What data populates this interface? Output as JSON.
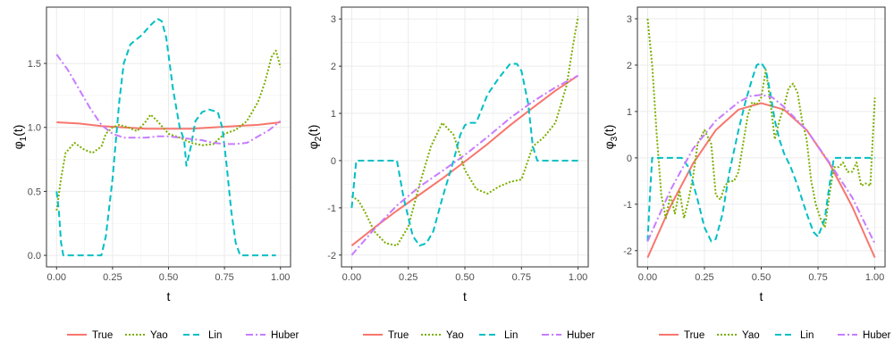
{
  "colors": {
    "True": "#F8766D",
    "Yao": "#7CAE00",
    "Lin": "#00BFC4",
    "Huber": "#C77CFF"
  },
  "chart_data": [
    {
      "type": "line",
      "xlabel": "t",
      "ylabel": "φ1(t)",
      "ylabel_main": "φ",
      "ylabel_sub": "1",
      "ylabel_tail": "(t)",
      "xlim": [
        -0.045,
        1.045
      ],
      "ylim": [
        -0.09,
        1.94
      ],
      "xticks": [
        0,
        0.25,
        0.5,
        0.75,
        1
      ],
      "xtick_labels": [
        "0.00",
        "0.25",
        "0.50",
        "0.75",
        "1.00"
      ],
      "yticks": [
        0,
        0.5,
        1,
        1.5
      ],
      "ytick_labels": [
        "0.0",
        "0.5",
        "1.0",
        "1.5"
      ],
      "grid": true,
      "legend_position": "bottom",
      "legend": [
        "True",
        "Yao",
        "Lin",
        "Huber"
      ],
      "series": [
        {
          "name": "True",
          "dash": "solid",
          "x": [
            0,
            0.1,
            0.2,
            0.3,
            0.4,
            0.5,
            0.6,
            0.7,
            0.8,
            0.9,
            1.0
          ],
          "y": [
            1.04,
            1.03,
            1.01,
            1.0,
            0.99,
            0.99,
            0.99,
            1.0,
            1.01,
            1.02,
            1.04
          ]
        },
        {
          "name": "Yao",
          "dash": "dotted",
          "x": [
            0,
            0.02,
            0.04,
            0.08,
            0.12,
            0.16,
            0.2,
            0.22,
            0.25,
            0.28,
            0.32,
            0.36,
            0.4,
            0.42,
            0.45,
            0.5,
            0.55,
            0.6,
            0.65,
            0.7,
            0.75,
            0.8,
            0.85,
            0.9,
            0.93,
            0.96,
            0.98,
            1.0
          ],
          "y": [
            0.35,
            0.6,
            0.8,
            0.88,
            0.83,
            0.8,
            0.85,
            0.95,
            1.0,
            1.02,
            1.0,
            0.97,
            1.05,
            1.1,
            1.05,
            0.95,
            0.92,
            0.88,
            0.86,
            0.87,
            0.95,
            0.98,
            1.05,
            1.2,
            1.35,
            1.55,
            1.6,
            1.47
          ]
        },
        {
          "name": "Lin",
          "dash": "dashed",
          "x": [
            0,
            0.01,
            0.02,
            0.03,
            0.05,
            0.1,
            0.2,
            0.22,
            0.25,
            0.28,
            0.3,
            0.33,
            0.38,
            0.42,
            0.45,
            0.47,
            0.49,
            0.52,
            0.55,
            0.57,
            0.58,
            0.6,
            0.62,
            0.65,
            0.68,
            0.72,
            0.74,
            0.76,
            0.78,
            0.8,
            0.82,
            0.85,
            0.9,
            0.95,
            0.98
          ],
          "y": [
            0.5,
            0.35,
            0.1,
            0.0,
            0.0,
            0.0,
            0.0,
            0.15,
            0.6,
            1.2,
            1.5,
            1.65,
            1.72,
            1.8,
            1.85,
            1.83,
            1.7,
            1.3,
            1.0,
            0.9,
            0.7,
            0.85,
            1.05,
            1.12,
            1.14,
            1.12,
            1.0,
            0.7,
            0.35,
            0.1,
            0.0,
            0.0,
            0.0,
            0.0,
            0.0
          ]
        },
        {
          "name": "Huber",
          "dash": "dashdot",
          "x": [
            0,
            0.05,
            0.1,
            0.15,
            0.2,
            0.25,
            0.3,
            0.35,
            0.4,
            0.45,
            0.5,
            0.55,
            0.6,
            0.65,
            0.7,
            0.75,
            0.8,
            0.85,
            0.9,
            0.95,
            1.0
          ],
          "y": [
            1.57,
            1.45,
            1.3,
            1.15,
            1.02,
            0.95,
            0.92,
            0.92,
            0.92,
            0.93,
            0.93,
            0.92,
            0.91,
            0.9,
            0.88,
            0.87,
            0.87,
            0.88,
            0.93,
            0.98,
            1.05
          ]
        }
      ]
    },
    {
      "type": "line",
      "xlabel": "t",
      "ylabel": "φ2(t)",
      "ylabel_main": "φ",
      "ylabel_sub": "2",
      "ylabel_tail": "(t)",
      "xlim": [
        -0.045,
        1.045
      ],
      "ylim": [
        -2.25,
        3.25
      ],
      "xticks": [
        0,
        0.25,
        0.5,
        0.75,
        1
      ],
      "xtick_labels": [
        "0.00",
        "0.25",
        "0.50",
        "0.75",
        "1.00"
      ],
      "yticks": [
        -2,
        -1,
        0,
        1,
        2,
        3
      ],
      "ytick_labels": [
        "-2",
        "-1",
        "0",
        "1",
        "2",
        "3"
      ],
      "grid": true,
      "legend_position": "bottom",
      "legend": [
        "True",
        "Yao",
        "Lin",
        "Huber"
      ],
      "series": [
        {
          "name": "True",
          "dash": "solid",
          "x": [
            0,
            0.1,
            0.2,
            0.3,
            0.4,
            0.5,
            0.6,
            0.7,
            0.8,
            0.9,
            1.0
          ],
          "y": [
            -1.8,
            -1.42,
            -1.06,
            -0.72,
            -0.38,
            -0.02,
            0.35,
            0.75,
            1.12,
            1.48,
            1.8
          ]
        },
        {
          "name": "Yao",
          "dash": "dotted",
          "x": [
            0,
            0.03,
            0.06,
            0.1,
            0.15,
            0.2,
            0.25,
            0.3,
            0.35,
            0.4,
            0.45,
            0.5,
            0.55,
            0.6,
            0.65,
            0.7,
            0.75,
            0.8,
            0.85,
            0.9,
            0.95,
            0.98,
            1.0
          ],
          "y": [
            -0.75,
            -0.85,
            -1.1,
            -1.5,
            -1.75,
            -1.8,
            -1.4,
            -0.5,
            0.3,
            0.8,
            0.55,
            -0.2,
            -0.6,
            -0.7,
            -0.55,
            -0.45,
            -0.4,
            0.3,
            0.5,
            0.8,
            1.6,
            2.5,
            3.05
          ]
        },
        {
          "name": "Lin",
          "dash": "dashed",
          "x": [
            0,
            0.01,
            0.02,
            0.05,
            0.1,
            0.2,
            0.23,
            0.27,
            0.3,
            0.33,
            0.36,
            0.4,
            0.45,
            0.48,
            0.5,
            0.52,
            0.55,
            0.6,
            0.65,
            0.7,
            0.73,
            0.75,
            0.78,
            0.8,
            0.82,
            0.85,
            0.9,
            0.95,
            1.0
          ],
          "y": [
            -1.0,
            -0.5,
            0.0,
            0.0,
            0.0,
            0.0,
            -0.8,
            -1.6,
            -1.8,
            -1.75,
            -1.5,
            -0.8,
            0.0,
            0.55,
            0.75,
            0.8,
            0.8,
            1.4,
            1.75,
            2.05,
            2.05,
            1.9,
            1.2,
            0.3,
            0.0,
            0.0,
            0.0,
            0.0,
            0.0
          ]
        },
        {
          "name": "Huber",
          "dash": "dashdot",
          "x": [
            0,
            0.1,
            0.2,
            0.3,
            0.4,
            0.5,
            0.6,
            0.7,
            0.8,
            0.9,
            1.0
          ],
          "y": [
            -2.0,
            -1.45,
            -0.95,
            -0.55,
            -0.22,
            0.12,
            0.5,
            0.9,
            1.25,
            1.55,
            1.8
          ]
        }
      ]
    },
    {
      "type": "line",
      "xlabel": "t",
      "ylabel": "φ3(t)",
      "ylabel_main": "φ",
      "ylabel_sub": "3",
      "ylabel_tail": "(t)",
      "xlim": [
        -0.045,
        1.045
      ],
      "ylim": [
        -2.35,
        3.25
      ],
      "xticks": [
        0,
        0.25,
        0.5,
        0.75,
        1
      ],
      "xtick_labels": [
        "0.00",
        "0.25",
        "0.50",
        "0.75",
        "1.00"
      ],
      "yticks": [
        -2,
        -1,
        0,
        1,
        2,
        3
      ],
      "ytick_labels": [
        "-2",
        "-1",
        "0",
        "1",
        "2",
        "3"
      ],
      "grid": true,
      "legend_position": "bottom",
      "legend": [
        "True",
        "Yao",
        "Lin",
        "Huber"
      ],
      "series": [
        {
          "name": "True",
          "dash": "solid",
          "x": [
            0,
            0.1,
            0.2,
            0.3,
            0.4,
            0.5,
            0.6,
            0.7,
            0.8,
            0.9,
            1.0
          ],
          "y": [
            -2.15,
            -1.05,
            -0.12,
            0.6,
            1.04,
            1.18,
            1.04,
            0.6,
            -0.12,
            -1.05,
            -2.15
          ]
        },
        {
          "name": "Yao",
          "dash": "dotted",
          "x": [
            0,
            0.02,
            0.04,
            0.06,
            0.08,
            0.1,
            0.12,
            0.14,
            0.16,
            0.18,
            0.2,
            0.22,
            0.25,
            0.28,
            0.3,
            0.32,
            0.34,
            0.36,
            0.38,
            0.4,
            0.42,
            0.44,
            0.46,
            0.48,
            0.5,
            0.52,
            0.54,
            0.56,
            0.58,
            0.6,
            0.62,
            0.64,
            0.66,
            0.68,
            0.7,
            0.72,
            0.74,
            0.76,
            0.78,
            0.8,
            0.82,
            0.84,
            0.86,
            0.88,
            0.9,
            0.92,
            0.94,
            0.96,
            0.98,
            1.0
          ],
          "y": [
            3.0,
            2.0,
            0.5,
            -0.8,
            -1.3,
            -0.8,
            -1.2,
            -0.7,
            -1.3,
            -0.9,
            -0.4,
            0.3,
            0.6,
            0.3,
            -0.8,
            -0.9,
            -0.6,
            -0.5,
            -0.5,
            -0.3,
            0.3,
            0.9,
            1.2,
            1.15,
            1.3,
            1.9,
            1.2,
            0.4,
            0.8,
            1.1,
            1.5,
            1.6,
            1.4,
            0.8,
            0.4,
            -0.5,
            -1.0,
            -1.3,
            -1.5,
            -0.8,
            -0.2,
            -0.2,
            -0.1,
            -0.3,
            -0.3,
            -0.1,
            -0.6,
            -0.55,
            -0.6,
            1.3
          ]
        },
        {
          "name": "Lin",
          "dash": "dashed",
          "x": [
            0,
            0.01,
            0.02,
            0.05,
            0.1,
            0.15,
            0.18,
            0.22,
            0.25,
            0.28,
            0.3,
            0.33,
            0.36,
            0.4,
            0.43,
            0.46,
            0.48,
            0.5,
            0.52,
            0.54,
            0.56,
            0.58,
            0.6,
            0.63,
            0.66,
            0.7,
            0.73,
            0.75,
            0.78,
            0.8,
            0.82,
            0.85,
            0.9,
            0.95,
            1.0
          ],
          "y": [
            -1.8,
            -0.8,
            0.0,
            0.0,
            0.0,
            0.0,
            -0.2,
            -0.9,
            -1.5,
            -1.8,
            -1.75,
            -1.2,
            -0.3,
            0.6,
            1.2,
            1.7,
            2.0,
            2.05,
            1.9,
            1.4,
            0.8,
            0.4,
            0.1,
            -0.2,
            -0.6,
            -1.2,
            -1.6,
            -1.7,
            -1.3,
            -0.6,
            0.0,
            0.0,
            0.0,
            0.0,
            0.0
          ]
        },
        {
          "name": "Huber",
          "dash": "dashdot",
          "x": [
            0,
            0.1,
            0.2,
            0.3,
            0.4,
            0.45,
            0.5,
            0.55,
            0.6,
            0.7,
            0.8,
            0.9,
            1.0
          ],
          "y": [
            -1.8,
            -0.7,
            0.2,
            0.8,
            1.2,
            1.33,
            1.36,
            1.3,
            1.1,
            0.6,
            -0.1,
            -0.85,
            -1.85
          ]
        }
      ]
    }
  ]
}
